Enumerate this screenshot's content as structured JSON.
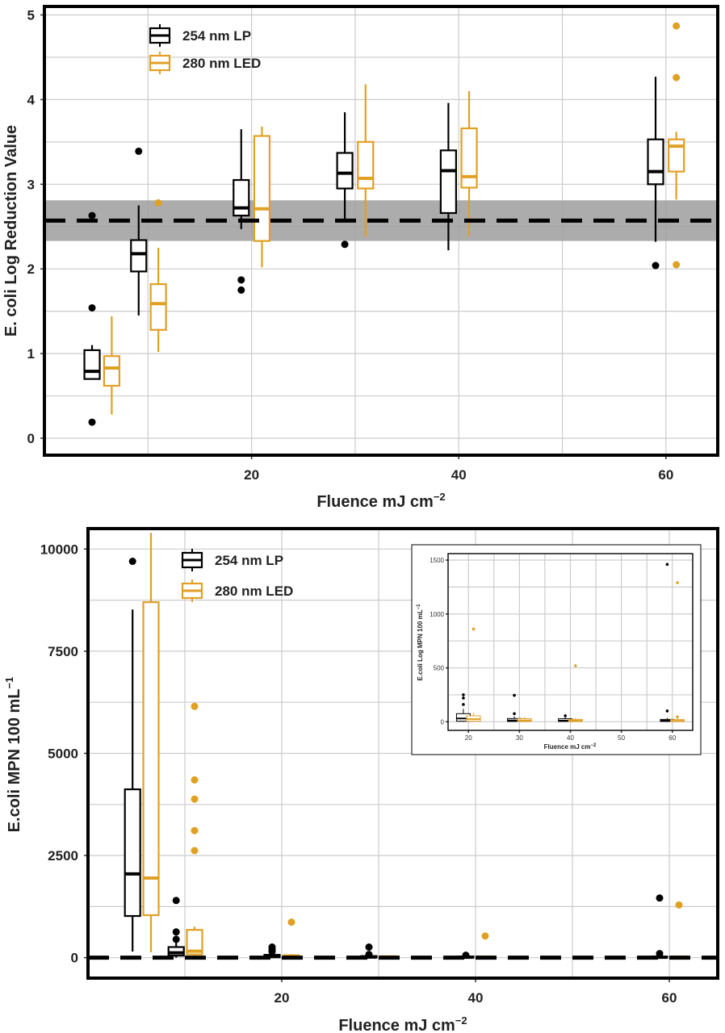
{
  "colors": {
    "lp": "#000000",
    "led": "#e0a024",
    "grid": "#cccccc",
    "band": "#9e9e9e",
    "panel_border": "#000000"
  },
  "chart_data": [
    {
      "type": "box",
      "panel": "top",
      "xlabel": "Fluence mJ cm",
      "xlabel_sup": "−2",
      "ylabel": "E. coli Log Reduction Value",
      "xlim": [
        0,
        65
      ],
      "ylim": [
        -0.2,
        5.1
      ],
      "x_ticks": [
        "20",
        "40",
        "60"
      ],
      "y_ticks": [
        "0",
        "1",
        "2",
        "3",
        "4",
        "5"
      ],
      "grid": "on",
      "legend_position": "top-left",
      "reference_line": {
        "value": 2.57,
        "style": "dashed",
        "band": [
          2.33,
          2.81
        ]
      },
      "series": [
        {
          "name": "254 nm LP",
          "boxes": [
            {
              "x": 4.6,
              "min": 0.7,
              "q1": 0.7,
              "median": 0.79,
              "q3": 1.04,
              "max": 1.1,
              "outliers": [
                1.54,
                0.19,
                2.63
              ]
            },
            {
              "x": 9.1,
              "min": 1.45,
              "q1": 1.97,
              "median": 2.18,
              "q3": 2.34,
              "max": 2.75,
              "outliers": [
                3.39
              ]
            },
            {
              "x": 19.0,
              "min": 2.47,
              "q1": 2.63,
              "median": 2.72,
              "q3": 3.05,
              "max": 3.65,
              "outliers": [
                1.87,
                1.75
              ]
            },
            {
              "x": 29.0,
              "min": 2.55,
              "q1": 2.95,
              "median": 3.13,
              "q3": 3.37,
              "max": 3.85,
              "outliers": [
                2.29
              ]
            },
            {
              "x": 39.0,
              "min": 2.22,
              "q1": 2.66,
              "median": 3.16,
              "q3": 3.4,
              "max": 3.96,
              "outliers": []
            },
            {
              "x": 59.0,
              "min": 2.32,
              "q1": 3.0,
              "median": 3.15,
              "q3": 3.53,
              "max": 4.27,
              "outliers": [
                2.04
              ]
            }
          ]
        },
        {
          "name": "280 nm LED",
          "boxes": [
            {
              "x": 6.5,
              "min": 0.28,
              "q1": 0.62,
              "median": 0.83,
              "q3": 0.97,
              "max": 1.44,
              "outliers": []
            },
            {
              "x": 11.0,
              "min": 1.02,
              "q1": 1.28,
              "median": 1.59,
              "q3": 1.82,
              "max": 2.25,
              "outliers": [
                2.78
              ]
            },
            {
              "x": 21.0,
              "min": 2.02,
              "q1": 2.33,
              "median": 2.71,
              "q3": 3.57,
              "max": 3.68,
              "outliers": []
            },
            {
              "x": 31.0,
              "min": 2.38,
              "q1": 2.95,
              "median": 3.07,
              "q3": 3.5,
              "max": 4.18,
              "outliers": []
            },
            {
              "x": 41.0,
              "min": 2.38,
              "q1": 2.96,
              "median": 3.09,
              "q3": 3.66,
              "max": 4.1,
              "outliers": []
            },
            {
              "x": 61.0,
              "min": 2.82,
              "q1": 3.15,
              "median": 3.45,
              "q3": 3.53,
              "max": 3.62,
              "outliers": [
                4.87,
                4.26,
                2.05
              ]
            }
          ]
        }
      ]
    },
    {
      "type": "box",
      "panel": "bottom",
      "xlabel": "Fluence mJ cm",
      "xlabel_sup": "−2",
      "ylabel": "E.coli MPN 100 mL",
      "ylabel_sup": "−1",
      "xlim": [
        0,
        65
      ],
      "ylim": [
        -500,
        10500
      ],
      "x_ticks": [
        "20",
        "40",
        "60"
      ],
      "y_ticks": [
        "0",
        "2500",
        "5000",
        "7500",
        "10000"
      ],
      "grid": "on",
      "legend_position": "top-left",
      "reference_line": {
        "value": 0,
        "style": "dashed"
      },
      "series": [
        {
          "name": "254 nm LP",
          "boxes": [
            {
              "x": 4.6,
              "min": 150,
              "q1": 1020,
              "median": 2050,
              "q3": 4120,
              "max": 8520,
              "outliers": [
                9700
              ]
            },
            {
              "x": 9.1,
              "min": 0,
              "q1": 50,
              "median": 120,
              "q3": 260,
              "max": 400,
              "outliers": [
                1400,
                630,
                450
              ]
            },
            {
              "x": 19.0,
              "min": 0,
              "q1": 10,
              "median": 30,
              "q3": 70,
              "max": 120,
              "outliers": [
                260,
                200,
                150
              ]
            },
            {
              "x": 29.0,
              "min": 0,
              "q1": 5,
              "median": 15,
              "q3": 40,
              "max": 60,
              "outliers": [
                260,
                80
              ]
            },
            {
              "x": 39.0,
              "min": 0,
              "q1": 5,
              "median": 10,
              "q3": 30,
              "max": 40,
              "outliers": [
                60
              ]
            },
            {
              "x": 59.0,
              "min": 0,
              "q1": 5,
              "median": 10,
              "q3": 25,
              "max": 40,
              "outliers": [
                1460,
                100
              ]
            }
          ]
        },
        {
          "name": "280 nm LED",
          "boxes": [
            {
              "x": 6.5,
              "min": 130,
              "q1": 1040,
              "median": 1950,
              "q3": 8700,
              "max": 10400,
              "outliers": []
            },
            {
              "x": 11.0,
              "min": 0,
              "q1": 80,
              "median": 160,
              "q3": 680,
              "max": 760,
              "outliers": [
                6150,
                4350,
                3880,
                3110,
                2620
              ]
            },
            {
              "x": 21.0,
              "min": 0,
              "q1": 10,
              "median": 30,
              "q3": 60,
              "max": 90,
              "outliers": [
                870
              ]
            },
            {
              "x": 31.0,
              "min": 0,
              "q1": 5,
              "median": 15,
              "q3": 35,
              "max": 50,
              "outliers": []
            },
            {
              "x": 41.0,
              "min": 0,
              "q1": 5,
              "median": 10,
              "q3": 25,
              "max": 40,
              "outliers": [
                530
              ]
            },
            {
              "x": 61.0,
              "min": 0,
              "q1": 5,
              "median": 10,
              "q3": 30,
              "max": 40,
              "outliers": [
                1290
              ]
            }
          ]
        }
      ]
    },
    {
      "type": "box",
      "panel": "inset",
      "xlabel": "Fluence mJ cm",
      "xlabel_sup": "−2",
      "ylabel": "E.coli Log MPN 100 mL",
      "ylabel_sup": "−1",
      "xlim": [
        16,
        64
      ],
      "ylim": [
        -80,
        1560
      ],
      "x_ticks": [
        "20",
        "30",
        "40",
        "50",
        "60"
      ],
      "y_ticks": [
        "0",
        "500",
        "1000",
        "1500"
      ],
      "grid": "on",
      "series": [
        {
          "name": "254 nm LP",
          "boxes": [
            {
              "x": 19.0,
              "min": 0,
              "q1": 5,
              "median": 30,
              "q3": 75,
              "max": 120,
              "outliers": [
                250,
                220,
                160
              ]
            },
            {
              "x": 29.0,
              "min": 0,
              "q1": 3,
              "median": 12,
              "q3": 30,
              "max": 50,
              "outliers": [
                245,
                75
              ]
            },
            {
              "x": 39.0,
              "min": 0,
              "q1": 3,
              "median": 10,
              "q3": 28,
              "max": 40,
              "outliers": [
                55
              ]
            },
            {
              "x": 59.0,
              "min": 0,
              "q1": 3,
              "median": 10,
              "q3": 22,
              "max": 35,
              "outliers": [
                1460,
                100
              ]
            }
          ]
        },
        {
          "name": "280 nm LED",
          "boxes": [
            {
              "x": 21.0,
              "min": 0,
              "q1": 5,
              "median": 25,
              "q3": 55,
              "max": 80,
              "outliers": [
                860
              ]
            },
            {
              "x": 31.0,
              "min": 0,
              "q1": 3,
              "median": 12,
              "q3": 28,
              "max": 45,
              "outliers": []
            },
            {
              "x": 41.0,
              "min": 0,
              "q1": 3,
              "median": 10,
              "q3": 22,
              "max": 35,
              "outliers": [
                520
              ]
            },
            {
              "x": 61.0,
              "min": 0,
              "q1": 3,
              "median": 8,
              "q3": 20,
              "max": 30,
              "outliers": [
                1290,
                45
              ]
            }
          ]
        }
      ]
    }
  ]
}
